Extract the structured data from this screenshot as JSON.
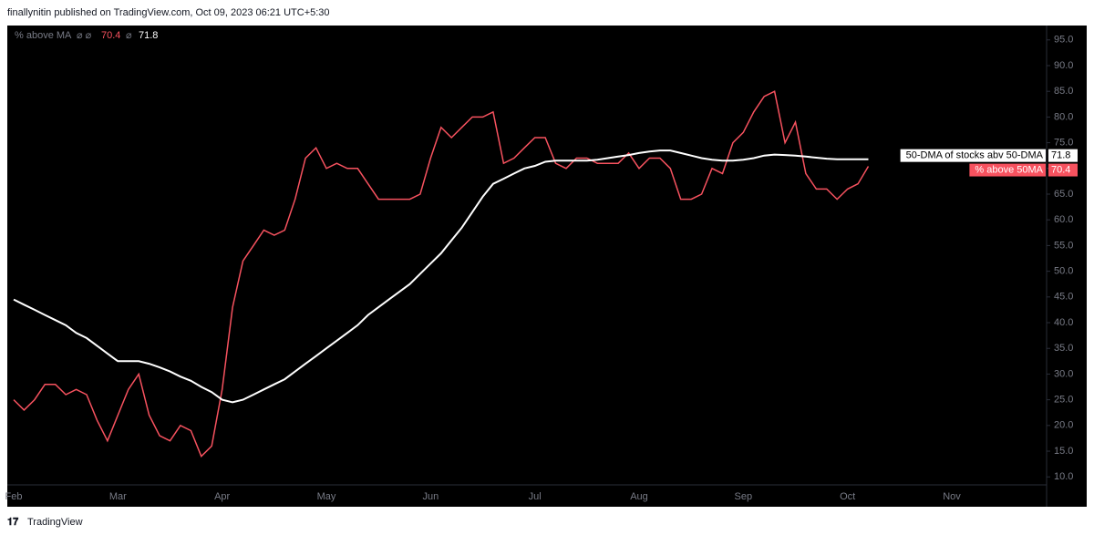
{
  "header": "finallynitin published on TradingView.com, Oct 09, 2023 06:21 UTC+5:30",
  "footer": "TradingView",
  "chart_data": {
    "type": "line",
    "legend_title": "% above MA",
    "categories": [
      "Feb",
      null,
      null,
      null,
      null,
      null,
      null,
      null,
      null,
      null,
      "Mar",
      null,
      null,
      null,
      null,
      null,
      null,
      null,
      null,
      null,
      "Apr",
      null,
      null,
      null,
      null,
      null,
      null,
      null,
      null,
      null,
      "May",
      null,
      null,
      null,
      null,
      null,
      null,
      null,
      null,
      null,
      "Jun",
      null,
      null,
      null,
      null,
      null,
      null,
      null,
      null,
      null,
      "Jul",
      null,
      null,
      null,
      null,
      null,
      null,
      null,
      null,
      null,
      "Aug",
      null,
      null,
      null,
      null,
      null,
      null,
      null,
      null,
      null,
      "Sep",
      null,
      null,
      null,
      null,
      null,
      null,
      null,
      null,
      null,
      "Oct",
      null,
      null,
      null,
      null,
      null,
      null,
      null,
      null,
      null,
      "Nov"
    ],
    "series": [
      {
        "name": "% above 50MA",
        "color": "#f7525f",
        "last_label": "70.4",
        "values": [
          25,
          23,
          25,
          28,
          28,
          26,
          27,
          26,
          21,
          17,
          22,
          27,
          30,
          22,
          18,
          17,
          20,
          19,
          14,
          16,
          27,
          43,
          52,
          55,
          58,
          57,
          58,
          64,
          72,
          74,
          70,
          71,
          70,
          70,
          67,
          64,
          64,
          64,
          64,
          65,
          72,
          78,
          76,
          78,
          80,
          80,
          81,
          71,
          72,
          74,
          76,
          76,
          71,
          70,
          72,
          72,
          71,
          71,
          71,
          73,
          70,
          72,
          72,
          70,
          64,
          64,
          65,
          70,
          69,
          75,
          77,
          81,
          84,
          85,
          75,
          79,
          69,
          66,
          66,
          64,
          66,
          67,
          70.4,
          null,
          null,
          null,
          null,
          null,
          null,
          null,
          null
        ]
      },
      {
        "name": "50-DMA of stocks abv 50-DMA",
        "color": "#ffffff",
        "last_label": "71.8",
        "values": [
          44.5,
          43.5,
          42.5,
          41.5,
          40.5,
          39.5,
          38,
          37,
          35.5,
          34,
          32.5,
          32.5,
          32.5,
          32,
          31.3,
          30.5,
          29.5,
          28.7,
          27.5,
          26.5,
          25,
          24.5,
          25,
          26,
          27,
          28,
          29,
          30.5,
          32,
          33.5,
          35,
          36.5,
          38,
          39.5,
          41.5,
          43,
          44.5,
          46,
          47.5,
          49.5,
          51.5,
          53.5,
          56,
          58.5,
          61.5,
          64.5,
          67,
          68,
          69,
          70,
          70.5,
          71.3,
          71.5,
          71.5,
          71.5,
          71.5,
          71.7,
          72,
          72.3,
          72.6,
          73,
          73.3,
          73.5,
          73.5,
          73,
          72.5,
          72,
          71.7,
          71.5,
          71.5,
          71.7,
          72,
          72.5,
          72.7,
          72.6,
          72.5,
          72.3,
          72.1,
          71.9,
          71.8,
          71.8,
          71.8,
          71.8,
          null,
          null,
          null,
          null,
          null,
          null,
          null,
          null
        ]
      }
    ],
    "ylim": [
      8.8,
      97.8
    ],
    "yticks": [
      {
        "value": 10,
        "label": "10.0"
      },
      {
        "value": 15,
        "label": "15.0"
      },
      {
        "value": 20,
        "label": "20.0"
      },
      {
        "value": 25,
        "label": "25.0"
      },
      {
        "value": 30,
        "label": "30.0"
      },
      {
        "value": 35,
        "label": "35.0"
      },
      {
        "value": 40,
        "label": "40.0"
      },
      {
        "value": 45,
        "label": "45.0"
      },
      {
        "value": 50,
        "label": "50.0"
      },
      {
        "value": 55,
        "label": "55.0"
      },
      {
        "value": 60,
        "label": "60.0"
      },
      {
        "value": 65,
        "label": "65.0"
      },
      {
        "value": 70,
        "label": "70.0"
      },
      {
        "value": 75,
        "label": "75.0"
      },
      {
        "value": 80,
        "label": "80.0"
      },
      {
        "value": 85,
        "label": "85.0"
      },
      {
        "value": 90,
        "label": "90.0"
      },
      {
        "value": 95,
        "label": "95.0"
      }
    ],
    "grid": false
  }
}
